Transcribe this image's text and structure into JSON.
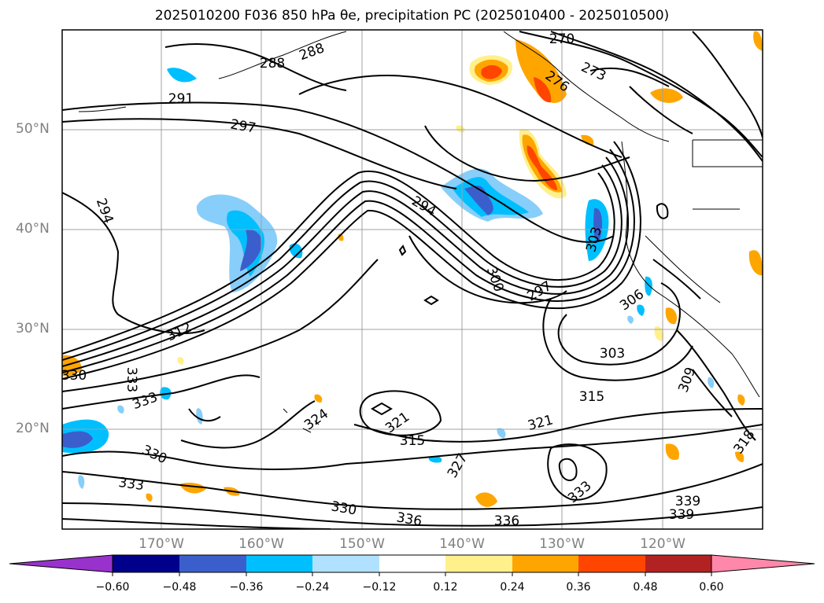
{
  "title": "2025010200 F036 850 hPa θe, precipitation PC (2025010400 - 2025010500)",
  "lat_labels": [
    "50°N",
    "40°N",
    "30°N",
    "20°N"
  ],
  "lon_labels": [
    "170°W",
    "160°W",
    "150°W",
    "140°W",
    "130°W",
    "120°W"
  ],
  "contour_labels": [
    "270",
    "273",
    "276",
    "288",
    "288",
    "291",
    "297",
    "294",
    "294",
    "300",
    "297",
    "303",
    "312",
    "306",
    "303",
    "309",
    "315",
    "321",
    "315",
    "324",
    "321",
    "327",
    "330",
    "330",
    "330",
    "333",
    "333",
    "333",
    "333",
    "336",
    "336",
    "339",
    "339",
    "318"
  ],
  "colorbar": {
    "ticks": [
      "−0.60",
      "−0.48",
      "−0.36",
      "−0.24",
      "−0.12",
      "0.12",
      "0.24",
      "0.36",
      "0.48",
      "0.60"
    ],
    "colors": [
      "#9932cc",
      "#00008b",
      "#3a5fcd",
      "#00bfff",
      "#b0e2ff",
      "#ffffff",
      "#fff08c",
      "#ffa500",
      "#ff4500",
      "#b22222",
      "#ff88aa"
    ]
  }
}
